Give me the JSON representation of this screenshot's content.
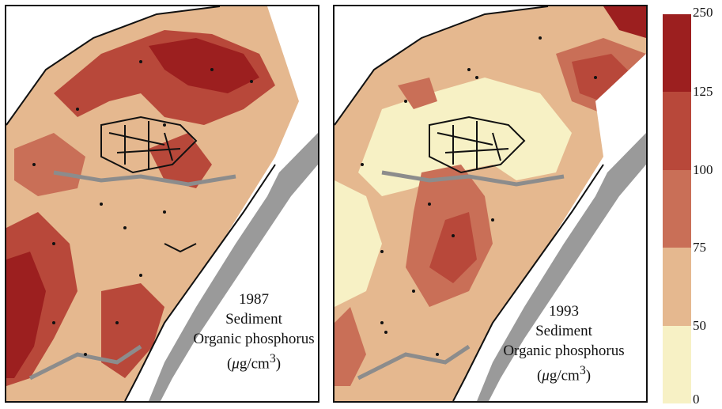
{
  "panels": [
    {
      "year": "1987",
      "line2": "Sediment",
      "line3": "Organic phosphorus",
      "unit_prefix": "(",
      "unit_mu": "μ",
      "unit_rest": "g/cm",
      "unit_sup": "3",
      "unit_suffix": ")"
    },
    {
      "year": "1993",
      "line2": "Sediment",
      "line3": "Organic phosphorus",
      "unit_prefix": "(",
      "unit_mu": "μ",
      "unit_rest": "g/cm",
      "unit_sup": "3",
      "unit_suffix": ")"
    }
  ],
  "legend": {
    "labels": [
      "250",
      "125",
      "100",
      "75",
      "50",
      "0"
    ],
    "colors": [
      "#9c1f1f",
      "#b8483a",
      "#c96f57",
      "#e5b88f",
      "#f7f1c5"
    ]
  },
  "colors": {
    "land": "#ffffff",
    "channel": "#8c8c8c",
    "outline": "#111111",
    "water_gray": "#9a9a9a"
  }
}
